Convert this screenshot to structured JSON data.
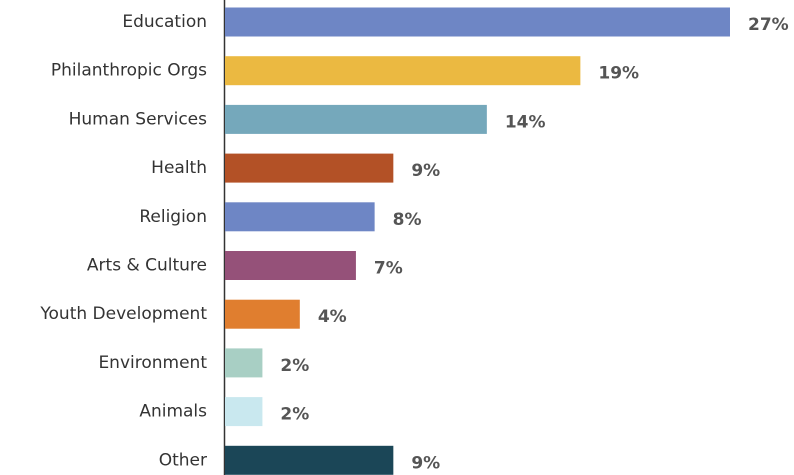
{
  "chart_data": {
    "type": "bar",
    "orientation": "horizontal",
    "categories": [
      "Education",
      "Philanthropic Orgs",
      "Human Services",
      "Health",
      "Religion",
      "Arts & Culture",
      "Youth Development",
      "Environment",
      "Animals",
      "Other"
    ],
    "values": [
      27,
      19,
      14,
      9,
      8,
      7,
      4,
      2,
      2,
      9
    ],
    "value_labels": [
      "27%",
      "19%",
      "14%",
      "9%",
      "8%",
      "7%",
      "4%",
      "2%",
      "2%",
      "9%"
    ],
    "colors": [
      "#6e86c5",
      "#ebb941",
      "#75a8bb",
      "#b35126",
      "#6e86c5",
      "#955179",
      "#e07e2f",
      "#a8cfc4",
      "#c9e8ef",
      "#1b4657"
    ]
  }
}
